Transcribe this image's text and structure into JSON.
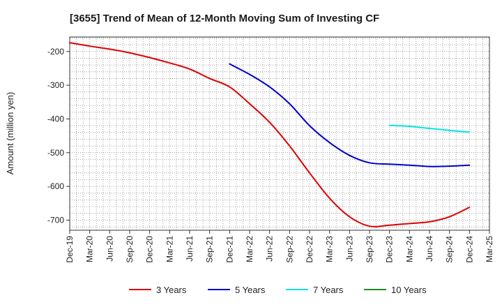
{
  "chart_data": {
    "type": "line",
    "title": "[3655]  Trend of Mean of 12-Month Moving Sum of Investing CF",
    "xlabel": "",
    "ylabel": "Amount (million yen)",
    "ylim": [
      -730,
      -157
    ],
    "yticks": [
      -200,
      -300,
      -400,
      -500,
      -600,
      -700
    ],
    "x_categories": [
      "Dec-19",
      "Mar-20",
      "Jun-20",
      "Sep-20",
      "Dec-20",
      "Mar-21",
      "Jun-21",
      "Sep-21",
      "Dec-21",
      "Mar-22",
      "Jun-22",
      "Sep-22",
      "Dec-22",
      "Mar-23",
      "Jun-23",
      "Sep-23",
      "Dec-23",
      "Mar-24",
      "Jun-24",
      "Sep-24",
      "Dec-24",
      "Mar-25"
    ],
    "grid": true,
    "legend_position": "bottom",
    "series": [
      {
        "name": "3 Years",
        "color": "#dd0000",
        "values": [
          -174,
          -184,
          -193,
          -204,
          -218,
          -234,
          -252,
          -280,
          -305,
          -355,
          -410,
          -480,
          -560,
          -635,
          -690,
          -718,
          -715,
          -710,
          -705,
          -690,
          -662,
          null
        ]
      },
      {
        "name": "5 Years",
        "color": "#0000cc",
        "values": [
          null,
          null,
          null,
          null,
          null,
          null,
          null,
          null,
          -237,
          -268,
          -305,
          -355,
          -420,
          -470,
          -508,
          -530,
          -534,
          -537,
          -541,
          -540,
          -537,
          null
        ]
      },
      {
        "name": "7 Years",
        "color": "#00e5e5",
        "values": [
          null,
          null,
          null,
          null,
          null,
          null,
          null,
          null,
          null,
          null,
          null,
          null,
          null,
          null,
          null,
          null,
          -419,
          -422,
          -428,
          -434,
          -439,
          null
        ]
      },
      {
        "name": "10 Years",
        "color": "#228b22",
        "values": [
          null,
          null,
          null,
          null,
          null,
          null,
          null,
          null,
          null,
          null,
          null,
          null,
          null,
          null,
          null,
          null,
          null,
          null,
          null,
          null,
          null,
          null
        ]
      }
    ]
  }
}
